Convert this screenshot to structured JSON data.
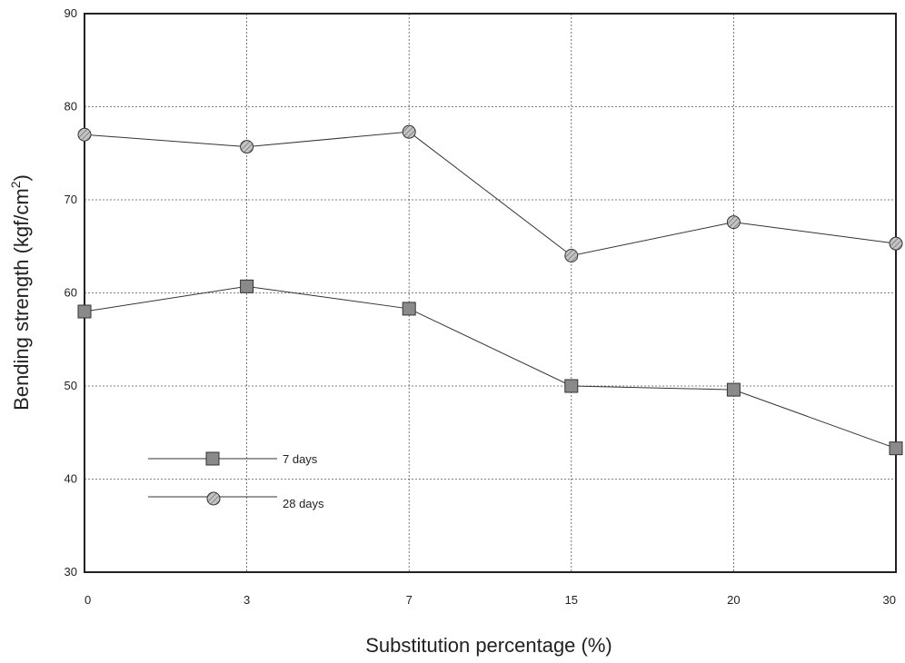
{
  "chart_data": {
    "type": "line",
    "categories": [
      "0",
      "3",
      "7",
      "15",
      "20",
      "30"
    ],
    "xlabel": "Substitution percentage (%)",
    "ylabel": "Bending strength (kgf/cm",
    "ylabel_sup": "2",
    "ylabel_end": ")",
    "ylim": [
      30,
      90
    ],
    "yticks": [
      "30",
      "40",
      "50",
      "60",
      "70",
      "80",
      "90"
    ],
    "grid": true,
    "legend_position": "lower-left",
    "series": [
      {
        "name": "7 days",
        "marker": "square",
        "values": [
          58,
          60.7,
          58.3,
          50,
          49.6,
          43.3
        ]
      },
      {
        "name": "28 days",
        "marker": "circle",
        "values": [
          77,
          75.7,
          77.3,
          64,
          67.6,
          65.3
        ]
      }
    ],
    "colors": {
      "line": "#333333",
      "square_fill": "#8a8a8a",
      "circle_fill": "#b8b8b8",
      "grid": "#555555"
    }
  }
}
